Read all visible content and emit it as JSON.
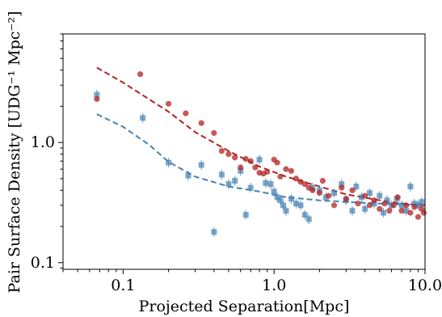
{
  "chart_data": {
    "type": "scatter",
    "xlabel": "Projected Separation[Mpc]",
    "ylabel": "Pair Surface Density [UDG⁻¹ Mpc⁻²]",
    "xscale": "log",
    "yscale": "log",
    "xlim": [
      0.04,
      10.0
    ],
    "ylim": [
      0.088,
      8.0
    ],
    "xticks": [
      {
        "value": 0.1,
        "label": "0.1"
      },
      {
        "value": 1.0,
        "label": "1.0"
      },
      {
        "value": 10.0,
        "label": "10.0"
      }
    ],
    "yticks": [
      {
        "value": 0.1,
        "label": "0.1"
      },
      {
        "value": 1.0,
        "label": "1.0"
      }
    ],
    "grid": false,
    "legend": "none",
    "series": [
      {
        "color": "#4682b4",
        "marker": "square",
        "points": [
          [
            0.067,
            2.5
          ],
          [
            0.135,
            1.6
          ],
          [
            0.2,
            0.68
          ],
          [
            0.27,
            0.53
          ],
          [
            0.33,
            0.65
          ],
          [
            0.4,
            0.18
          ],
          [
            0.45,
            0.54
          ],
          [
            0.5,
            0.45
          ],
          [
            0.55,
            0.48
          ],
          [
            0.6,
            0.58
          ],
          [
            0.65,
            0.25
          ],
          [
            0.7,
            0.42
          ],
          [
            0.8,
            0.72
          ],
          [
            0.88,
            0.46
          ],
          [
            0.95,
            0.45
          ],
          [
            1.0,
            0.39
          ],
          [
            1.05,
            0.35
          ],
          [
            1.1,
            0.33
          ],
          [
            1.15,
            0.3
          ],
          [
            1.2,
            0.27
          ],
          [
            1.3,
            0.34
          ],
          [
            1.4,
            0.31
          ],
          [
            1.5,
            0.3
          ],
          [
            1.6,
            0.25
          ],
          [
            1.7,
            0.23
          ],
          [
            1.8,
            0.42
          ],
          [
            2.0,
            0.4
          ],
          [
            2.2,
            0.35
          ],
          [
            2.5,
            0.38
          ],
          [
            2.8,
            0.45
          ],
          [
            3.0,
            0.33
          ],
          [
            3.3,
            0.27
          ],
          [
            3.5,
            0.43
          ],
          [
            3.8,
            0.35
          ],
          [
            4.0,
            0.28
          ],
          [
            4.3,
            0.38
          ],
          [
            4.6,
            0.31
          ],
          [
            5.0,
            0.36
          ],
          [
            5.3,
            0.26
          ],
          [
            5.6,
            0.33
          ],
          [
            6.0,
            0.3
          ],
          [
            6.5,
            0.34
          ],
          [
            7.0,
            0.3
          ],
          [
            7.5,
            0.27
          ],
          [
            8.0,
            0.43
          ],
          [
            8.5,
            0.31
          ],
          [
            9.0,
            0.3
          ],
          [
            9.5,
            0.32
          ]
        ],
        "curve_x": [
          0.067,
          0.1,
          0.15,
          0.2,
          0.3,
          0.5,
          0.8,
          1.2,
          2.0,
          3.0,
          5.0,
          7.0,
          10.0
        ],
        "curve_y": [
          1.72,
          1.35,
          0.95,
          0.69,
          0.52,
          0.43,
          0.39,
          0.35,
          0.33,
          0.32,
          0.31,
          0.305,
          0.3
        ]
      },
      {
        "color": "#b22222",
        "marker": "circle",
        "points": [
          [
            0.067,
            2.3
          ],
          [
            0.13,
            3.7
          ],
          [
            0.2,
            2.1
          ],
          [
            0.26,
            1.75
          ],
          [
            0.33,
            1.45
          ],
          [
            0.4,
            1.2
          ],
          [
            0.45,
            0.85
          ],
          [
            0.5,
            0.8
          ],
          [
            0.55,
            0.75
          ],
          [
            0.6,
            0.62
          ],
          [
            0.65,
            0.73
          ],
          [
            0.7,
            0.7
          ],
          [
            0.75,
            0.62
          ],
          [
            0.8,
            0.56
          ],
          [
            0.85,
            0.55
          ],
          [
            0.9,
            0.57
          ],
          [
            1.0,
            0.72
          ],
          [
            1.05,
            0.68
          ],
          [
            1.1,
            0.52
          ],
          [
            1.2,
            0.6
          ],
          [
            1.3,
            0.58
          ],
          [
            1.4,
            0.5
          ],
          [
            1.5,
            0.47
          ],
          [
            1.6,
            0.45
          ],
          [
            1.7,
            0.42
          ],
          [
            1.8,
            0.4
          ],
          [
            2.0,
            0.38
          ],
          [
            2.1,
            0.48
          ],
          [
            2.3,
            0.36
          ],
          [
            2.5,
            0.3
          ],
          [
            2.8,
            0.42
          ],
          [
            3.0,
            0.34
          ],
          [
            3.3,
            0.4
          ],
          [
            3.6,
            0.31
          ],
          [
            4.0,
            0.36
          ],
          [
            4.3,
            0.3
          ],
          [
            4.6,
            0.33
          ],
          [
            5.0,
            0.28
          ],
          [
            5.4,
            0.31
          ],
          [
            5.8,
            0.27
          ],
          [
            6.2,
            0.3
          ],
          [
            6.6,
            0.35
          ],
          [
            7.0,
            0.27
          ],
          [
            7.5,
            0.3
          ],
          [
            8.0,
            0.26
          ],
          [
            8.5,
            0.29
          ],
          [
            9.0,
            0.24
          ],
          [
            9.5,
            0.28
          ],
          [
            9.8,
            0.26
          ]
        ],
        "curve_x": [
          0.067,
          0.1,
          0.2,
          0.3,
          0.5,
          0.8,
          1.2,
          2.0,
          3.0,
          5.0,
          7.0,
          10.0
        ],
        "curve_y": [
          4.2,
          3.15,
          1.8,
          1.22,
          0.85,
          0.63,
          0.52,
          0.43,
          0.37,
          0.33,
          0.31,
          0.3
        ]
      }
    ]
  }
}
